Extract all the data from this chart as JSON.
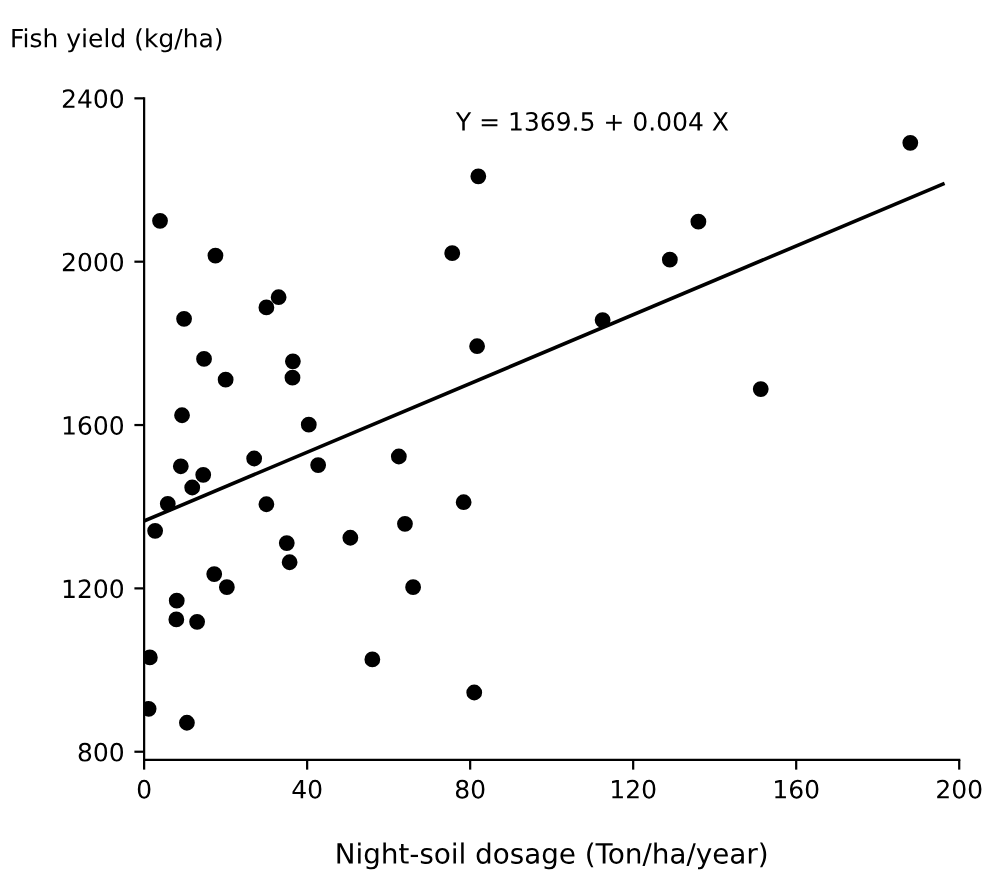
{
  "chart_data": {
    "type": "scatter",
    "ylabel": "Fish yield (kg/ha)",
    "xlabel": "Night-soil dosage (Ton/ha/year)",
    "annotations": [
      "Y = 1369.5 + 0.004 X"
    ],
    "xlim": [
      0,
      200
    ],
    "xticks": [
      0,
      40,
      80,
      120,
      160,
      200
    ],
    "ylim": [
      780,
      2400
    ],
    "yticks": [
      800,
      1200,
      1600,
      2000,
      2400
    ],
    "grid": false,
    "legend": false,
    "series": [
      {
        "marker": "circle",
        "color": "#000000",
        "x": [
          3.9,
          17.5,
          9.8,
          30,
          33,
          14.7,
          20,
          36.5,
          36.4,
          9.3,
          40.4,
          9,
          14.5,
          11.8,
          27,
          42.7,
          5.8,
          30,
          2.7,
          35,
          35.7,
          50.6,
          17.2,
          20.3,
          8,
          7.9,
          13,
          1.4,
          56,
          1.1,
          10.5,
          62.5,
          64,
          66,
          82,
          75.6,
          81.7,
          78.4,
          81,
          112.5,
          129,
          136,
          151.3,
          188
        ],
        "values": [
          2100,
          2015,
          1860,
          1888,
          1913,
          1762,
          1711,
          1756,
          1716,
          1624,
          1601,
          1499,
          1478,
          1447,
          1518,
          1502,
          1407,
          1406,
          1341,
          1311,
          1264,
          1324,
          1235,
          1203,
          1170,
          1124,
          1118,
          1031,
          1026,
          905,
          871,
          1523,
          1358,
          1203,
          2209,
          2021,
          1793,
          1411,
          945,
          1857,
          2005,
          2098,
          1688,
          2291
        ]
      },
      {
        "type": "line",
        "color": "#000000",
        "x": [
          0,
          196
        ],
        "values": [
          1365,
          2190
        ],
        "line_style": "solid",
        "marker": "none"
      }
    ]
  }
}
